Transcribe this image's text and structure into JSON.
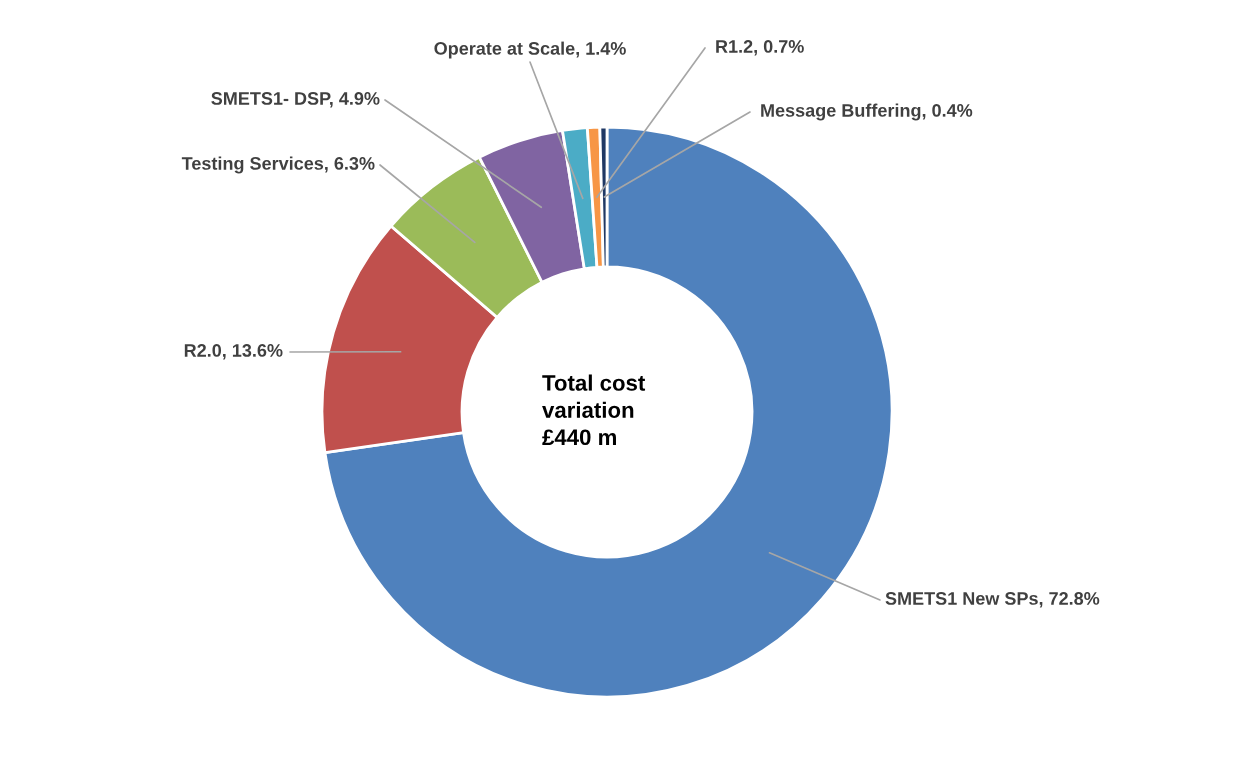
{
  "chart_data": {
    "type": "donut",
    "categories": [
      "SMETS1 New SPs",
      "R2.0",
      "Testing Services",
      "SMETS1- DSP",
      "Operate at Scale",
      "R1.2",
      "Message Buffering"
    ],
    "values": [
      72.8,
      13.6,
      6.3,
      4.9,
      1.4,
      0.7,
      0.4
    ],
    "colors": [
      "#4f81bd",
      "#c0504d",
      "#9bbb59",
      "#8064a2",
      "#4bacc6",
      "#f79646",
      "#1f3864"
    ],
    "value_labels": [
      "72.8%",
      "13.6%",
      "6.3%",
      "4.9%",
      "1.4%",
      "0.7%",
      "0.4%"
    ],
    "annotations": [
      "Total cost\nvariation\n£440 m"
    ],
    "legend": false
  }
}
